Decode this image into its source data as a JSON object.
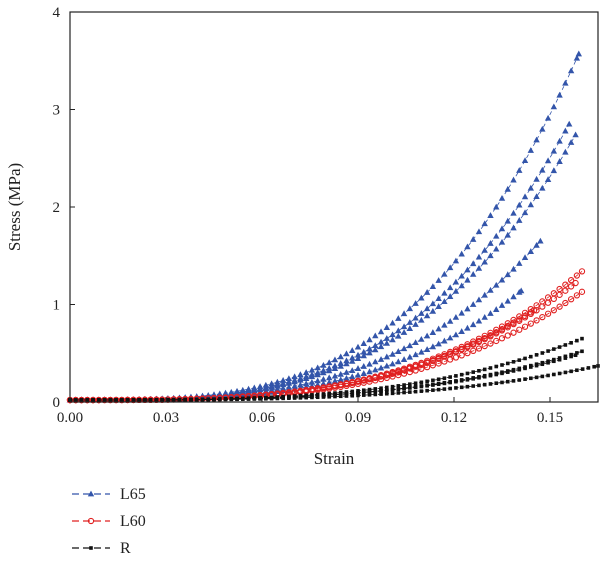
{
  "chart_data": {
    "type": "scatter",
    "title": "",
    "xlabel": "Strain",
    "ylabel": "Stress (MPa)",
    "xlim": [
      0,
      0.165
    ],
    "ylim": [
      0,
      4
    ],
    "xticks": [
      "0.00",
      "0.03",
      "0.06",
      "0.09",
      "0.12",
      "0.15"
    ],
    "yticks": [
      "0",
      "1",
      "2",
      "3",
      "4"
    ],
    "grid": false,
    "legend_position": "bottom-left, below plot",
    "series": [
      {
        "name": "L65",
        "color": "#3355aa",
        "marker": "triangle",
        "line": "dashed",
        "curves": [
          {
            "end_strain": 0.159,
            "end_stress": 3.57
          },
          {
            "end_strain": 0.156,
            "end_stress": 2.85
          },
          {
            "end_strain": 0.158,
            "end_stress": 2.74
          },
          {
            "end_strain": 0.147,
            "end_stress": 1.65
          },
          {
            "end_strain": 0.141,
            "end_stress": 1.14
          }
        ]
      },
      {
        "name": "L60",
        "color": "#e02020",
        "marker": "circle-open",
        "line": "dashed",
        "curves": [
          {
            "end_strain": 0.16,
            "end_stress": 1.34
          },
          {
            "end_strain": 0.158,
            "end_stress": 1.22
          },
          {
            "end_strain": 0.16,
            "end_stress": 1.13
          },
          {
            "end_strain": 0.145,
            "end_stress": 0.94
          }
        ]
      },
      {
        "name": "R",
        "color": "#111111",
        "marker": "square",
        "line": "dashed",
        "curves": [
          {
            "end_strain": 0.16,
            "end_stress": 0.65
          },
          {
            "end_strain": 0.16,
            "end_stress": 0.52
          },
          {
            "end_strain": 0.158,
            "end_stress": 0.48
          },
          {
            "end_strain": 0.165,
            "end_stress": 0.37
          }
        ]
      }
    ]
  }
}
